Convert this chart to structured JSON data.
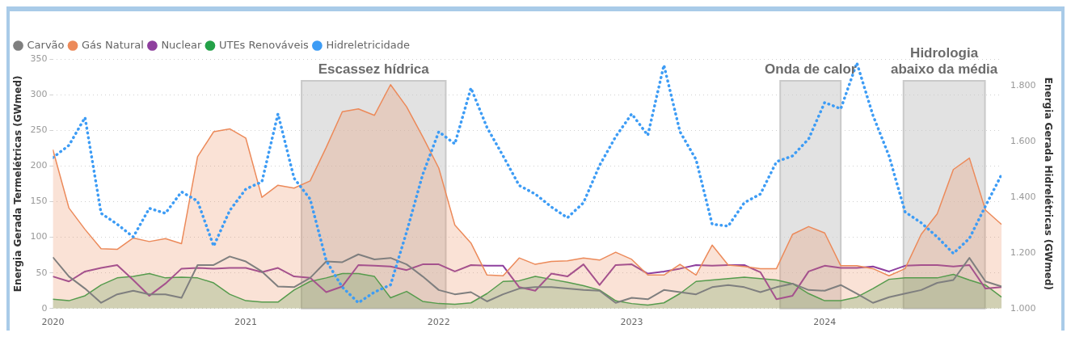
{
  "chart_data": {
    "type": "line",
    "x": [
      "2020-01",
      "2020-02",
      "2020-03",
      "2020-04",
      "2020-05",
      "2020-06",
      "2020-07",
      "2020-08",
      "2020-09",
      "2020-10",
      "2020-11",
      "2020-12",
      "2021-01",
      "2021-02",
      "2021-03",
      "2021-04",
      "2021-05",
      "2021-06",
      "2021-07",
      "2021-08",
      "2021-09",
      "2021-10",
      "2021-11",
      "2021-12",
      "2022-01",
      "2022-02",
      "2022-03",
      "2022-04",
      "2022-05",
      "2022-06",
      "2022-07",
      "2022-08",
      "2022-09",
      "2022-10",
      "2022-11",
      "2022-12",
      "2023-01",
      "2023-02",
      "2023-03",
      "2023-04",
      "2023-05",
      "2023-06",
      "2023-07",
      "2023-08",
      "2023-09",
      "2023-10",
      "2023-11",
      "2023-12",
      "2024-01",
      "2024-02",
      "2024-03",
      "2024-04",
      "2024-05",
      "2024-06",
      "2024-07",
      "2024-08",
      "2024-09",
      "2024-10",
      "2024-11",
      "2024-12"
    ],
    "series": [
      {
        "name": "Carvão",
        "type": "line",
        "color": "#7f7f7f",
        "values": [
          72,
          45,
          28,
          8,
          20,
          25,
          20,
          20,
          15,
          61,
          61,
          73,
          66,
          52,
          31,
          30,
          43,
          66,
          65,
          76,
          69,
          71,
          62,
          45,
          26,
          20,
          23,
          10,
          20,
          28,
          30,
          30,
          28,
          26,
          25,
          8,
          15,
          13,
          26,
          23,
          20,
          30,
          33,
          30,
          23,
          30,
          35,
          26,
          25,
          33,
          21,
          8,
          16,
          21,
          26,
          36,
          40,
          71,
          38,
          31
        ]
      },
      {
        "name": "Gás Natural",
        "type": "area",
        "color": "#ec8a5a",
        "values": [
          223,
          141,
          111,
          84,
          83,
          99,
          94,
          98,
          91,
          213,
          248,
          252,
          239,
          156,
          173,
          169,
          179,
          226,
          276,
          280,
          271,
          314,
          283,
          241,
          197,
          117,
          92,
          47,
          46,
          71,
          62,
          66,
          67,
          71,
          68,
          79,
          69,
          47,
          47,
          62,
          47,
          89,
          61,
          59,
          56,
          56,
          104,
          115,
          106,
          60,
          60,
          56,
          46,
          56,
          104,
          133,
          195,
          211,
          138,
          118
        ]
      },
      {
        "name": "Nuclear",
        "type": "line",
        "color": "#8e3f9e",
        "values": [
          45,
          38,
          52,
          57,
          61,
          40,
          18,
          35,
          56,
          57,
          56,
          57,
          57,
          51,
          57,
          45,
          43,
          23,
          31,
          61,
          60,
          59,
          54,
          62,
          62,
          52,
          61,
          60,
          60,
          30,
          25,
          49,
          45,
          62,
          33,
          61,
          62,
          49,
          52,
          56,
          61,
          60,
          61,
          61,
          51,
          13,
          18,
          52,
          60,
          57,
          57,
          59,
          52,
          60,
          61,
          61,
          59,
          61,
          28,
          30
        ]
      },
      {
        "name": "UTEs Renováveis",
        "type": "area",
        "color": "#24a148",
        "values": [
          13,
          11,
          18,
          33,
          43,
          45,
          49,
          43,
          44,
          43,
          36,
          20,
          11,
          9,
          9,
          26,
          38,
          43,
          49,
          49,
          45,
          15,
          24,
          10,
          7,
          6,
          8,
          21,
          38,
          39,
          45,
          41,
          37,
          32,
          26,
          11,
          7,
          5,
          8,
          21,
          38,
          40,
          42,
          44,
          42,
          40,
          35,
          21,
          11,
          11,
          16,
          28,
          41,
          43,
          43,
          43,
          48,
          40,
          33,
          16
        ]
      },
      {
        "name": "Hidreletricidade",
        "type": "line",
        "axis": "y2",
        "line_style": "dotted",
        "color": "#3d9cf5",
        "values": [
          1542,
          1586,
          1686,
          1342,
          1303,
          1257,
          1360,
          1342,
          1419,
          1386,
          1224,
          1352,
          1429,
          1455,
          1699,
          1468,
          1393,
          1172,
          1077,
          1021,
          1059,
          1085,
          1275,
          1481,
          1635,
          1591,
          1792,
          1650,
          1548,
          1442,
          1411,
          1365,
          1326,
          1380,
          1514,
          1617,
          1699,
          1622,
          1874,
          1635,
          1535,
          1303,
          1296,
          1380,
          1411,
          1527,
          1548,
          1609,
          1740,
          1717,
          1882,
          1694,
          1548,
          1347,
          1308,
          1257,
          1198,
          1252,
          1368,
          1481
        ]
      }
    ],
    "ylabel": "Energia Gerada Termelétricas (GWmed)",
    "y2label": "Energia Gerada Hidrelétricas (GWmed)",
    "xlim": [
      "2020-01",
      "2024-12"
    ],
    "xticks": [
      "2020",
      "2021",
      "2022",
      "2023",
      "2024"
    ],
    "ylim": [
      0,
      350
    ],
    "yticks": [
      0,
      50,
      100,
      150,
      200,
      250,
      300,
      350
    ],
    "y2lim": [
      1000,
      1896
    ],
    "y2ticks": [
      {
        "value": 1000,
        "label": "1.000"
      },
      {
        "value": 1200,
        "label": "1.200"
      },
      {
        "value": 1400,
        "label": "1.400"
      },
      {
        "value": 1600,
        "label": "1.600"
      },
      {
        "value": 1800,
        "label": "1.800"
      }
    ],
    "bands": [
      {
        "axis": "x",
        "from": "2021-04-15",
        "to": "2022-01-14",
        "label": "Escassez hídrica",
        "color": "#c9c9c9"
      },
      {
        "axis": "x",
        "from": "2023-10-08",
        "to": "2024-02-01",
        "label": "Onda de calor",
        "color": "#c9c9c9"
      },
      {
        "axis": "x",
        "from": "2024-05-28",
        "to": "2024-10-30",
        "label": "Hidrologia\nabaixo da média",
        "color": "#c9c9c9"
      }
    ],
    "grid": "y",
    "legend": "top left",
    "marker": "none",
    "line_style": "solid"
  }
}
